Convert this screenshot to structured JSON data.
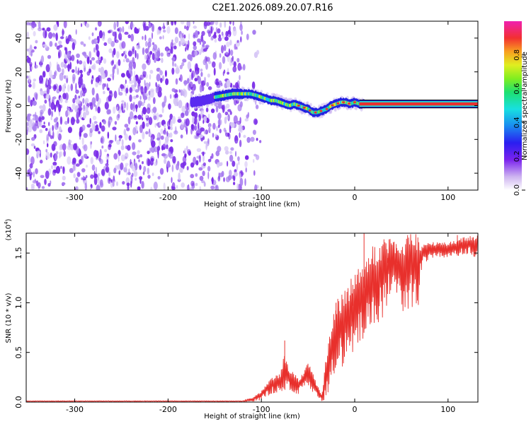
{
  "title": "C2E1.2026.089.20.07.R16",
  "chart_data": [
    {
      "type": "heatmap",
      "name": "spectrogram",
      "xlabel": "Height of straight line (km)",
      "ylabel": "Frequency (Hz)",
      "xlim": [
        -352,
        132
      ],
      "ylim": [
        -50,
        50
      ],
      "x_ticks": [
        -300,
        -200,
        -100,
        0,
        100
      ],
      "x_tick_labels": [
        "-300",
        "-200",
        "-100",
        "0",
        "100"
      ],
      "y_ticks": [
        -40,
        -20,
        0,
        20,
        40
      ],
      "y_tick_labels": [
        "-40",
        "-20",
        "0",
        "20",
        "40"
      ],
      "noise_region_x": [
        -352,
        -120
      ],
      "ridge": {
        "x": [
          -175,
          -160,
          -150,
          -140,
          -130,
          -120,
          -112,
          -105,
          -100,
          -95,
          -90,
          -85,
          -80,
          -75,
          -70,
          -65,
          -60,
          -55,
          -50,
          -45,
          -40,
          -35,
          -30,
          -25,
          -20,
          -15,
          -10,
          -5,
          0,
          5,
          10,
          40,
          80,
          132
        ],
        "y": [
          2,
          3,
          5,
          6,
          7,
          7,
          7,
          6,
          5,
          4,
          3,
          3,
          2,
          1,
          0,
          1,
          0,
          -1,
          -2,
          -4,
          -4,
          -3,
          -2,
          0,
          1,
          2,
          2,
          1,
          2,
          1,
          1,
          1,
          1,
          1
        ]
      }
    },
    {
      "type": "colorbar",
      "label": "Normalized spectral amplitude",
      "range": [
        0,
        1
      ],
      "ticks": [
        0.0,
        0.2,
        0.4,
        0.6,
        0.8
      ],
      "tick_labels": [
        "0.0",
        "0.2",
        "0.4",
        "0.6",
        "0.8"
      ]
    },
    {
      "type": "line",
      "name": "snr",
      "color": "#e8302c",
      "xlabel": "Height of straight line (km)",
      "ylabel": "SNR (10 * v/v)",
      "y_multiplier_base": "(x10",
      "y_multiplier_exp": "4",
      "y_multiplier_close": ")",
      "xlim": [
        -352,
        132
      ],
      "ylim": [
        0,
        1.7
      ],
      "x_ticks": [
        -300,
        -200,
        -100,
        0,
        100
      ],
      "x_tick_labels": [
        "-300",
        "-200",
        "-100",
        "0",
        "100"
      ],
      "y_ticks": [
        0.0,
        0.5,
        1.0,
        1.5
      ],
      "y_tick_labels": [
        "0.0",
        "0.5",
        "1.0",
        "1.5"
      ],
      "envelope": {
        "x": [
          -352,
          -120,
          -110,
          -100,
          -90,
          -80,
          -75,
          -70,
          -60,
          -55,
          -50,
          -45,
          -40,
          -35,
          -30,
          -25,
          -20,
          -10,
          0,
          10,
          20,
          30,
          40,
          50,
          60,
          68,
          70,
          72,
          80,
          100,
          120,
          132
        ],
        "mean": [
          0.01,
          0.01,
          0.03,
          0.08,
          0.18,
          0.22,
          0.35,
          0.25,
          0.18,
          0.24,
          0.32,
          0.22,
          0.12,
          0.05,
          0.35,
          0.6,
          0.75,
          0.85,
          1.0,
          1.15,
          1.25,
          1.35,
          1.45,
          1.35,
          1.45,
          1.4,
          1.45,
          1.5,
          1.55,
          1.55,
          1.6,
          1.6
        ],
        "amp": [
          0.005,
          0.005,
          0.03,
          0.06,
          0.1,
          0.12,
          0.25,
          0.15,
          0.1,
          0.12,
          0.15,
          0.12,
          0.08,
          0.04,
          0.35,
          0.4,
          0.45,
          0.5,
          0.55,
          0.5,
          0.55,
          0.5,
          0.35,
          0.45,
          0.5,
          0.6,
          0.2,
          0.15,
          0.1,
          0.1,
          0.12,
          0.15
        ]
      },
      "spikes": [
        {
          "x": 10,
          "y": 1.7
        },
        {
          "x": 35,
          "y": 1.45
        },
        {
          "x": 45,
          "y": 1.55
        },
        {
          "x": 65,
          "y": 1.5
        },
        {
          "x": 110,
          "y": 1.68
        },
        {
          "x": -2,
          "y": 1.18
        },
        {
          "x": -20,
          "y": 1.0
        },
        {
          "x": -75,
          "y": 0.62
        }
      ]
    }
  ]
}
